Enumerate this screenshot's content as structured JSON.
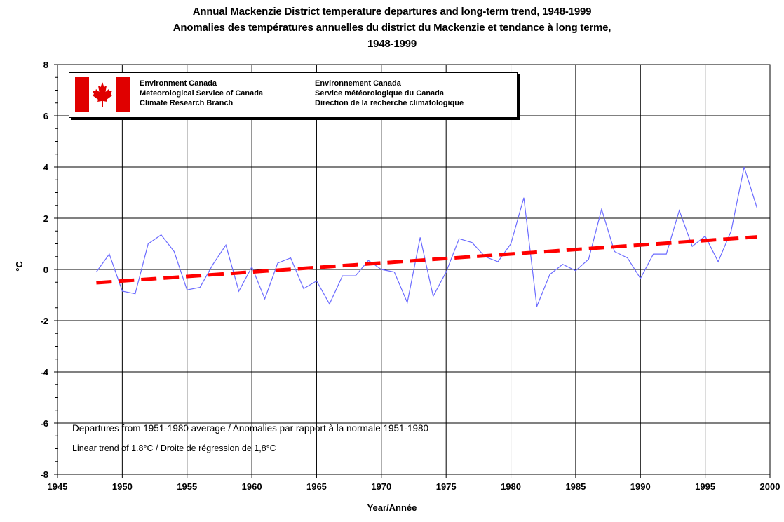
{
  "chart_data": {
    "type": "line",
    "title": "Annual Mackenzie District temperature departures and long-term trend, 1948-1999",
    "subtitle": "Anomalies des températures annuelles du district du Mackenzie et tendance à long terme,",
    "subtitle2": "1948-1999",
    "xlabel": "Year/Année",
    "ylabel": "°C",
    "xlim": [
      1945,
      2000
    ],
    "ylim": [
      -8,
      8
    ],
    "xticks": [
      "1945",
      "1950",
      "1955",
      "1960",
      "1965",
      "1970",
      "1975",
      "1980",
      "1985",
      "1990",
      "1995",
      "2000"
    ],
    "yticks": [
      "8",
      "6",
      "4",
      "2",
      "0",
      "-2",
      "-4",
      "-6",
      "-8"
    ],
    "grid": true,
    "x": [
      1948,
      1949,
      1950,
      1951,
      1952,
      1953,
      1954,
      1955,
      1956,
      1957,
      1958,
      1959,
      1960,
      1961,
      1962,
      1963,
      1964,
      1965,
      1966,
      1967,
      1968,
      1969,
      1970,
      1971,
      1972,
      1973,
      1974,
      1975,
      1976,
      1977,
      1978,
      1979,
      1980,
      1981,
      1982,
      1983,
      1984,
      1985,
      1986,
      1987,
      1988,
      1989,
      1990,
      1991,
      1992,
      1993,
      1994,
      1995,
      1996,
      1997,
      1998,
      1999
    ],
    "series": [
      {
        "color": "#6b6bff",
        "values": [
          -0.1,
          0.6,
          -0.85,
          -0.95,
          1.0,
          1.35,
          0.7,
          -0.8,
          -0.7,
          0.2,
          0.95,
          -0.85,
          0.1,
          -1.15,
          0.25,
          0.45,
          -0.75,
          -0.45,
          -1.35,
          -0.25,
          -0.25,
          0.35,
          0.0,
          -0.1,
          -1.3,
          1.25,
          -1.05,
          -0.1,
          1.2,
          1.05,
          0.5,
          0.3,
          1.0,
          2.8,
          -1.45,
          -0.2,
          0.2,
          -0.05,
          0.4,
          2.35,
          0.7,
          0.45,
          -0.35,
          0.6,
          0.6,
          2.3,
          0.9,
          1.3,
          0.3,
          1.5,
          4.0,
          2.4
        ]
      },
      {
        "color": "#ff0000",
        "values": [
          -0.52,
          1.27
        ],
        "x": [
          1948,
          1999
        ]
      }
    ],
    "annotations": [
      "Departures from 1951-1980 average / Anomalies par rapport à la normale 1951-1980",
      "Linear trend of 1.8°C / Droite de régression de 1,8°C"
    ]
  },
  "logo": {
    "en": [
      "Environment Canada",
      "Meteorological Service of Canada",
      "Climate Research Branch"
    ],
    "fr": [
      "Environnement Canada",
      "Service météorologique du Canada",
      "Direction de la recherche climatologique"
    ],
    "flag_red": "#e00000"
  }
}
